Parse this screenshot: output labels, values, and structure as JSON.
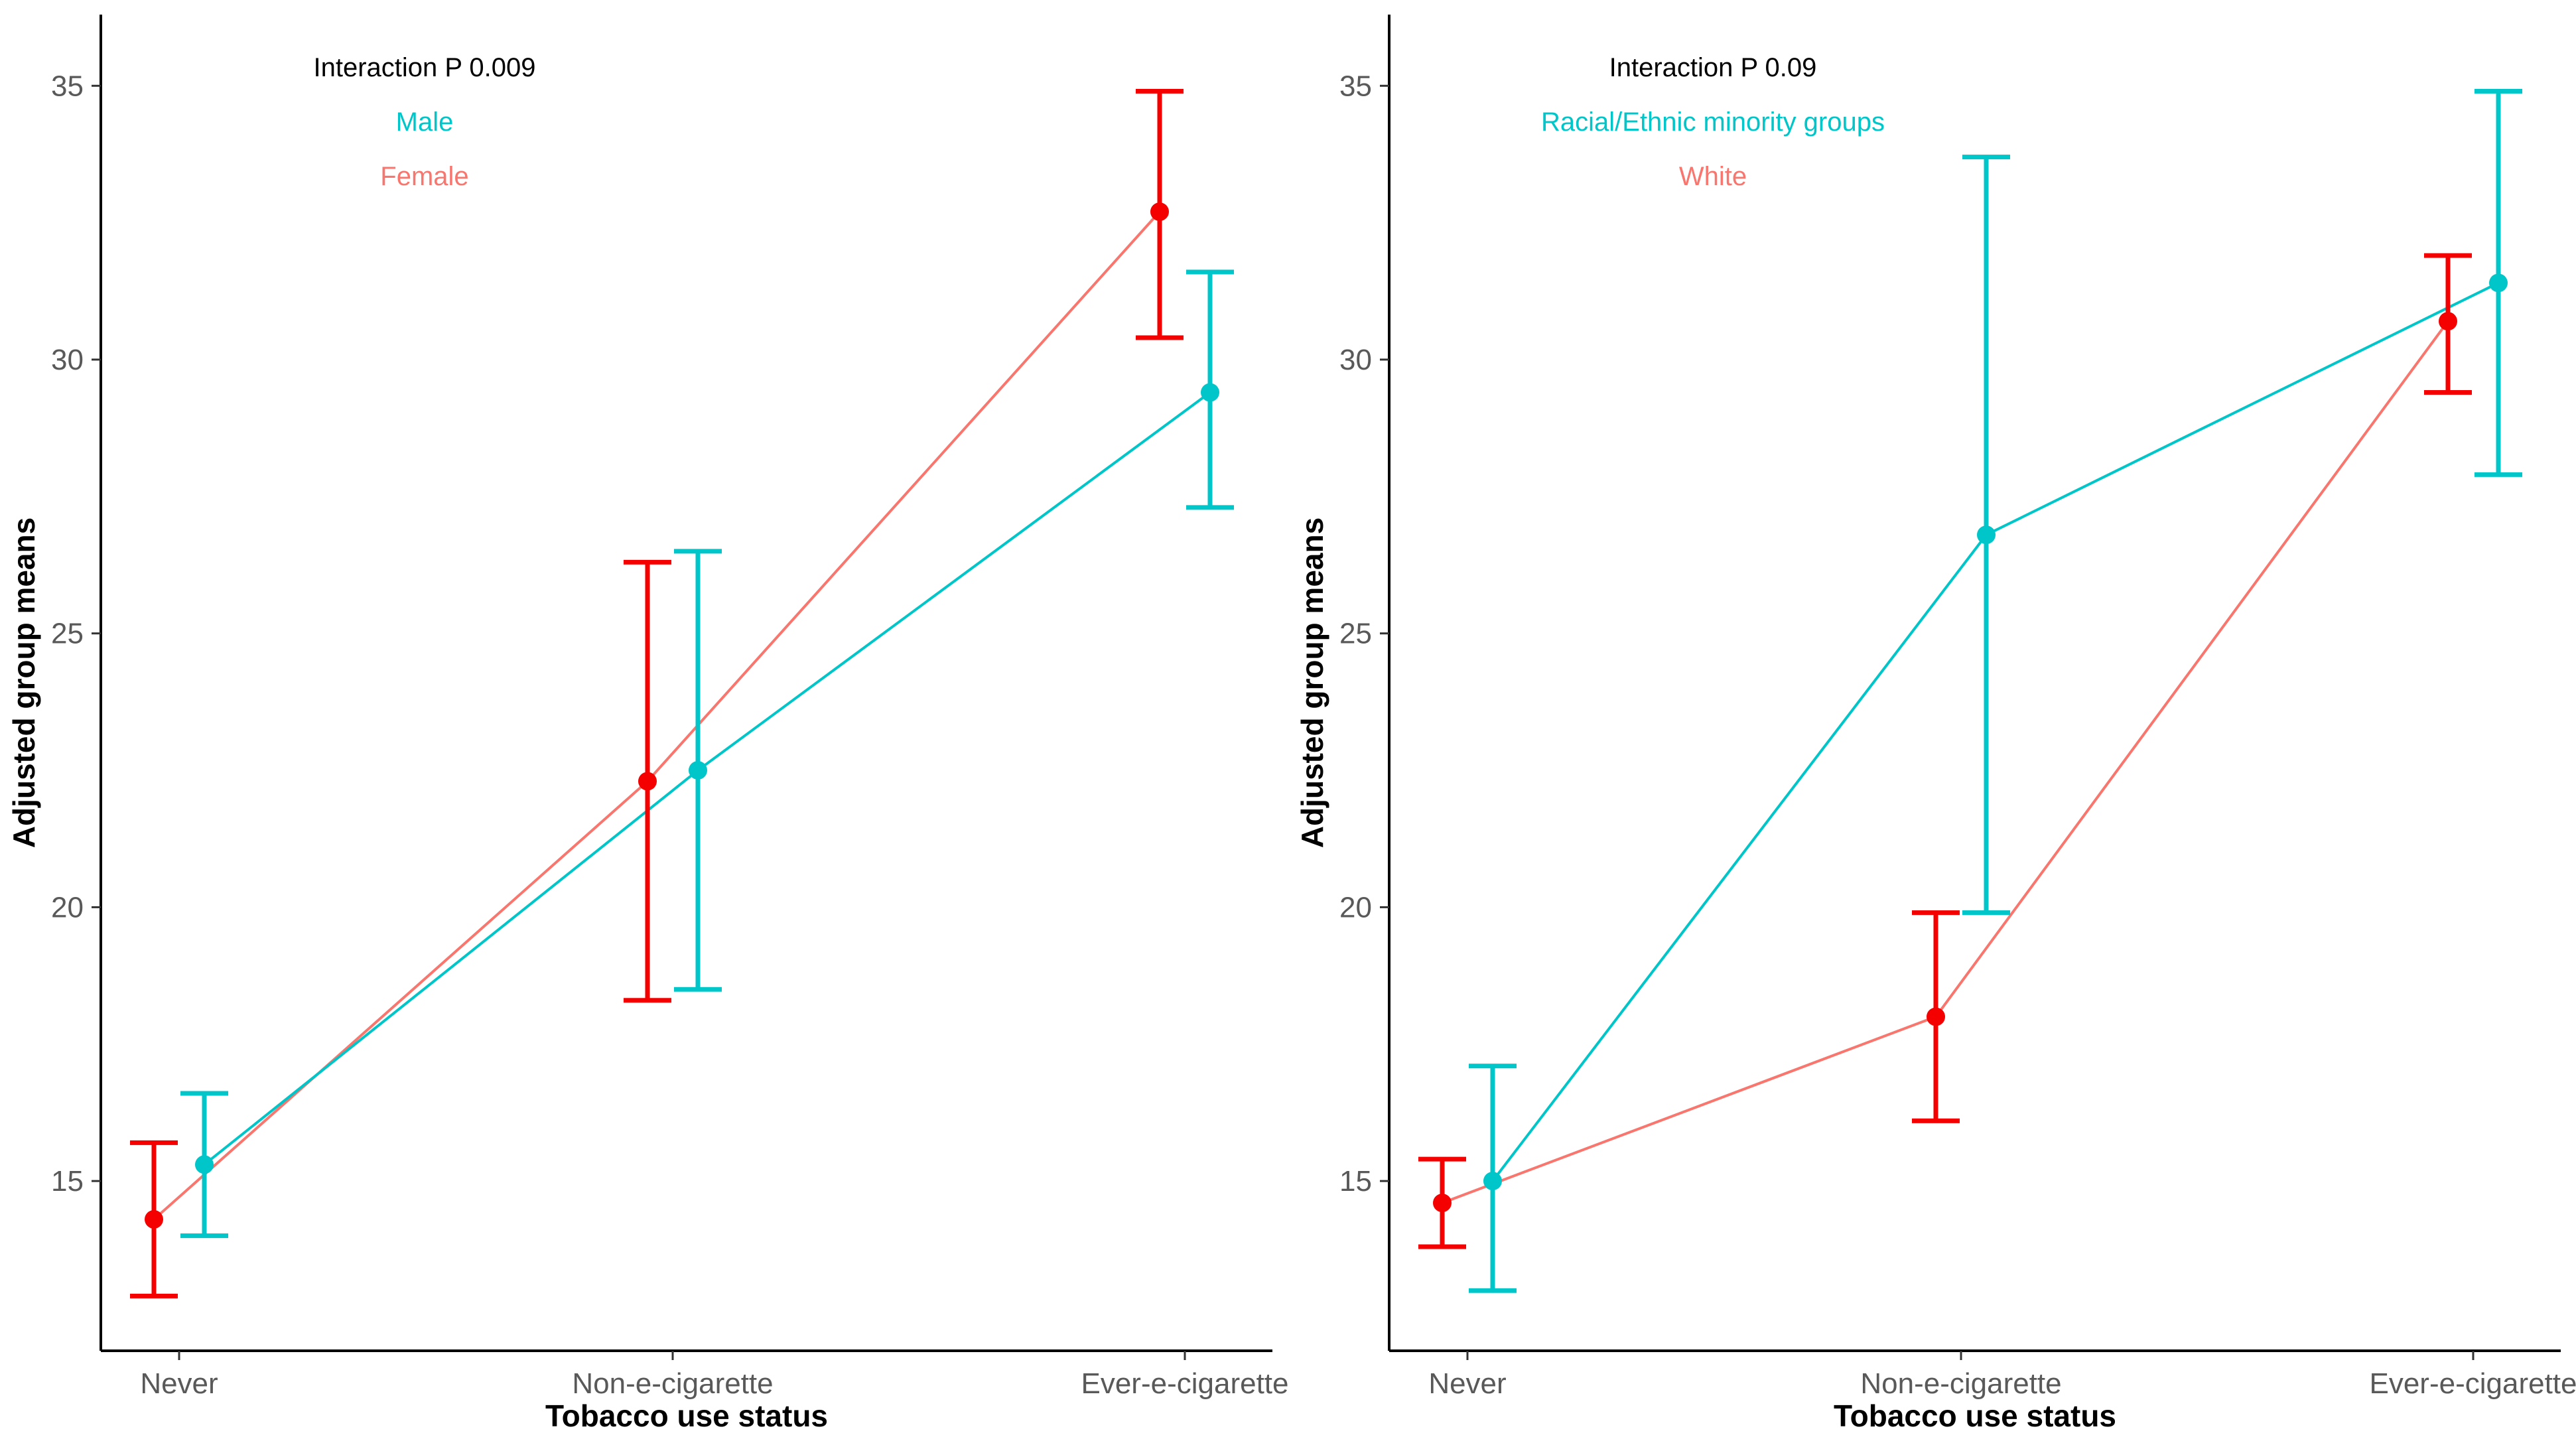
{
  "colors": {
    "teal": "#00C5C9",
    "salmon": "#F8766D",
    "red": "#F40000",
    "axis": "#000000",
    "tick_text": "#595959"
  },
  "chart_data": [
    {
      "type": "line",
      "panel": "left",
      "xlabel": "Tobacco use status",
      "ylabel": "Adjusted group means",
      "categories": [
        "Never",
        "Non-e-cigarette",
        "Ever-e-cigarette"
      ],
      "ylim": [
        11.9,
        36.3
      ],
      "yticks": [
        15,
        20,
        25,
        30,
        35
      ],
      "grid": false,
      "annotation": "Interaction P 0.009",
      "legend": [
        "Male",
        "Female"
      ],
      "series": [
        {
          "name": "Male",
          "line_color": "#00C5C9",
          "point_color": "#00C5C9",
          "values": [
            15.3,
            22.5,
            29.4
          ],
          "lower": [
            14.0,
            18.5,
            27.3
          ],
          "upper": [
            16.6,
            26.5,
            31.6
          ]
        },
        {
          "name": "Female",
          "line_color": "#F8766D",
          "point_color": "#F40000",
          "values": [
            14.3,
            22.3,
            32.7
          ],
          "lower": [
            12.9,
            18.3,
            30.4
          ],
          "upper": [
            15.7,
            26.3,
            34.9
          ]
        }
      ]
    },
    {
      "type": "line",
      "panel": "right",
      "xlabel": "Tobacco use status",
      "ylabel": "Adjusted group means",
      "categories": [
        "Never",
        "Non-e-cigarette",
        "Ever-e-cigarette"
      ],
      "ylim": [
        11.9,
        36.3
      ],
      "yticks": [
        15,
        20,
        25,
        30,
        35
      ],
      "grid": false,
      "annotation": "Interaction P 0.09",
      "legend": [
        "Racial/Ethnic minority groups",
        "White"
      ],
      "series": [
        {
          "name": "Racial/Ethnic minority groups",
          "line_color": "#00C5C9",
          "point_color": "#00C5C9",
          "values": [
            15.0,
            26.8,
            31.4
          ],
          "lower": [
            13.0,
            19.9,
            27.9
          ],
          "upper": [
            17.1,
            33.7,
            34.9
          ]
        },
        {
          "name": "White",
          "line_color": "#F8766D",
          "point_color": "#F40000",
          "values": [
            14.6,
            18.0,
            30.7
          ],
          "lower": [
            13.8,
            16.1,
            29.4
          ],
          "upper": [
            15.4,
            19.9,
            31.9
          ]
        }
      ]
    }
  ]
}
